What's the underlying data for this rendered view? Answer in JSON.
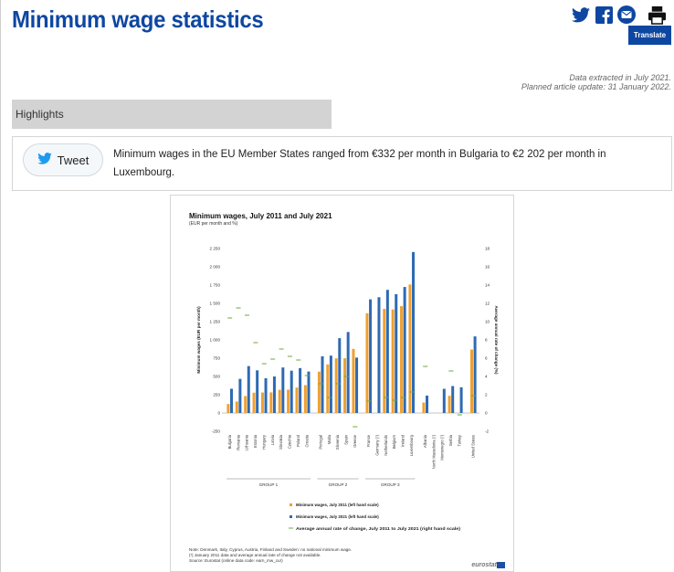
{
  "header": {
    "title": "Minimum wage statistics",
    "translate_label": "Translate"
  },
  "meta": {
    "extracted": "Data extracted in July 2021.",
    "update": "Planned article update: 31 January 2022."
  },
  "highlights": {
    "label": "Highlights"
  },
  "tweet": {
    "button_label": "Tweet",
    "text": "Minimum wages in the EU Member States ranged from €332 per month in Bulgaria to €2 202 per month in Luxembourg."
  },
  "colors": {
    "brand": "#0e47a1",
    "series_2011": "#f0a030",
    "series_2021": "#2e6ab3",
    "series_rate": "#6aaa3a"
  },
  "chart_data": {
    "type": "bar",
    "title": "Minimum wages, July 2011 and July 2021",
    "subtitle": "(EUR per month and %)",
    "ylabel": "Minimum wages (EUR per month)",
    "y2label": "Average annual rate of change (%)",
    "ylim": [
      -250,
      2250
    ],
    "y2lim": [
      -2,
      18
    ],
    "yticks": [
      "2 250",
      "2 000",
      "1 750",
      "1 500",
      "1 250",
      "1 000",
      "750",
      "500",
      "250",
      "0",
      "-250"
    ],
    "y2ticks": [
      "18",
      "16",
      "14",
      "12",
      "10",
      "8",
      "6",
      "4",
      "2",
      "0",
      "-2"
    ],
    "categories": [
      "Bulgaria",
      "Romania",
      "Lithuania",
      "Estonia",
      "Hungary",
      "Latvia",
      "Slovakia",
      "Czechia",
      "Poland",
      "Croatia",
      "Portugal",
      "Malta",
      "Slovenia",
      "Spain",
      "Greece",
      "France",
      "Germany (¹)",
      "Netherlands",
      "Belgium",
      "Ireland",
      "Luxembourg",
      "Albania",
      "North Macedonia (¹)",
      "Montenegro (¹)",
      "Serbia",
      "Turkey",
      "United States"
    ],
    "group_index": [
      0,
      0,
      0,
      0,
      0,
      0,
      0,
      0,
      0,
      0,
      1,
      1,
      1,
      1,
      1,
      2,
      2,
      2,
      2,
      2,
      2,
      3,
      3,
      3,
      3,
      3,
      4
    ],
    "groups": [
      "GROUP 1",
      "GROUP 2",
      "GROUP 3"
    ],
    "series": [
      {
        "name": "Minimum wages, July 2011 (left hand scale)",
        "values": [
          123,
          157,
          232,
          278,
          280,
          282,
          317,
          319,
          349,
          381,
          566,
          665,
          748,
          748,
          877,
          1365,
          null,
          1424,
          1416,
          1462,
          1758,
          144,
          null,
          null,
          235,
          null,
          868
        ]
      },
      {
        "name": "Minimum wages, July 2021 (left hand scale)",
        "values": [
          332,
          467,
          642,
          584,
          476,
          500,
          623,
          579,
          614,
          567,
          776,
          785,
          1024,
          1108,
          758,
          1555,
          1584,
          1685,
          1626,
          1724,
          2202,
          238,
          null,
          331,
          369,
          352,
          1048
        ]
      },
      {
        "name": "Average annual rate of change, July 2011 to July 2021 (right hand scale)",
        "values": [
          10.4,
          11.5,
          10.7,
          7.7,
          5.4,
          5.9,
          7.0,
          6.2,
          5.8,
          4.1,
          3.2,
          1.7,
          3.2,
          4.0,
          -1.5,
          1.3,
          null,
          1.7,
          1.4,
          1.7,
          2.3,
          5.1,
          null,
          null,
          4.6,
          -0.2,
          1.9
        ]
      }
    ],
    "legend": "bottom",
    "notes": [
      "Note: Denmark, Italy, Cyprus, Austria, Finland and Sweden: no national minimum wage.",
      "(¹) January 2011 data and average annual rate of change not available.",
      "Source: Eurostat (online data code: earn_mw_cur)"
    ],
    "logo_text": "eurostat"
  }
}
